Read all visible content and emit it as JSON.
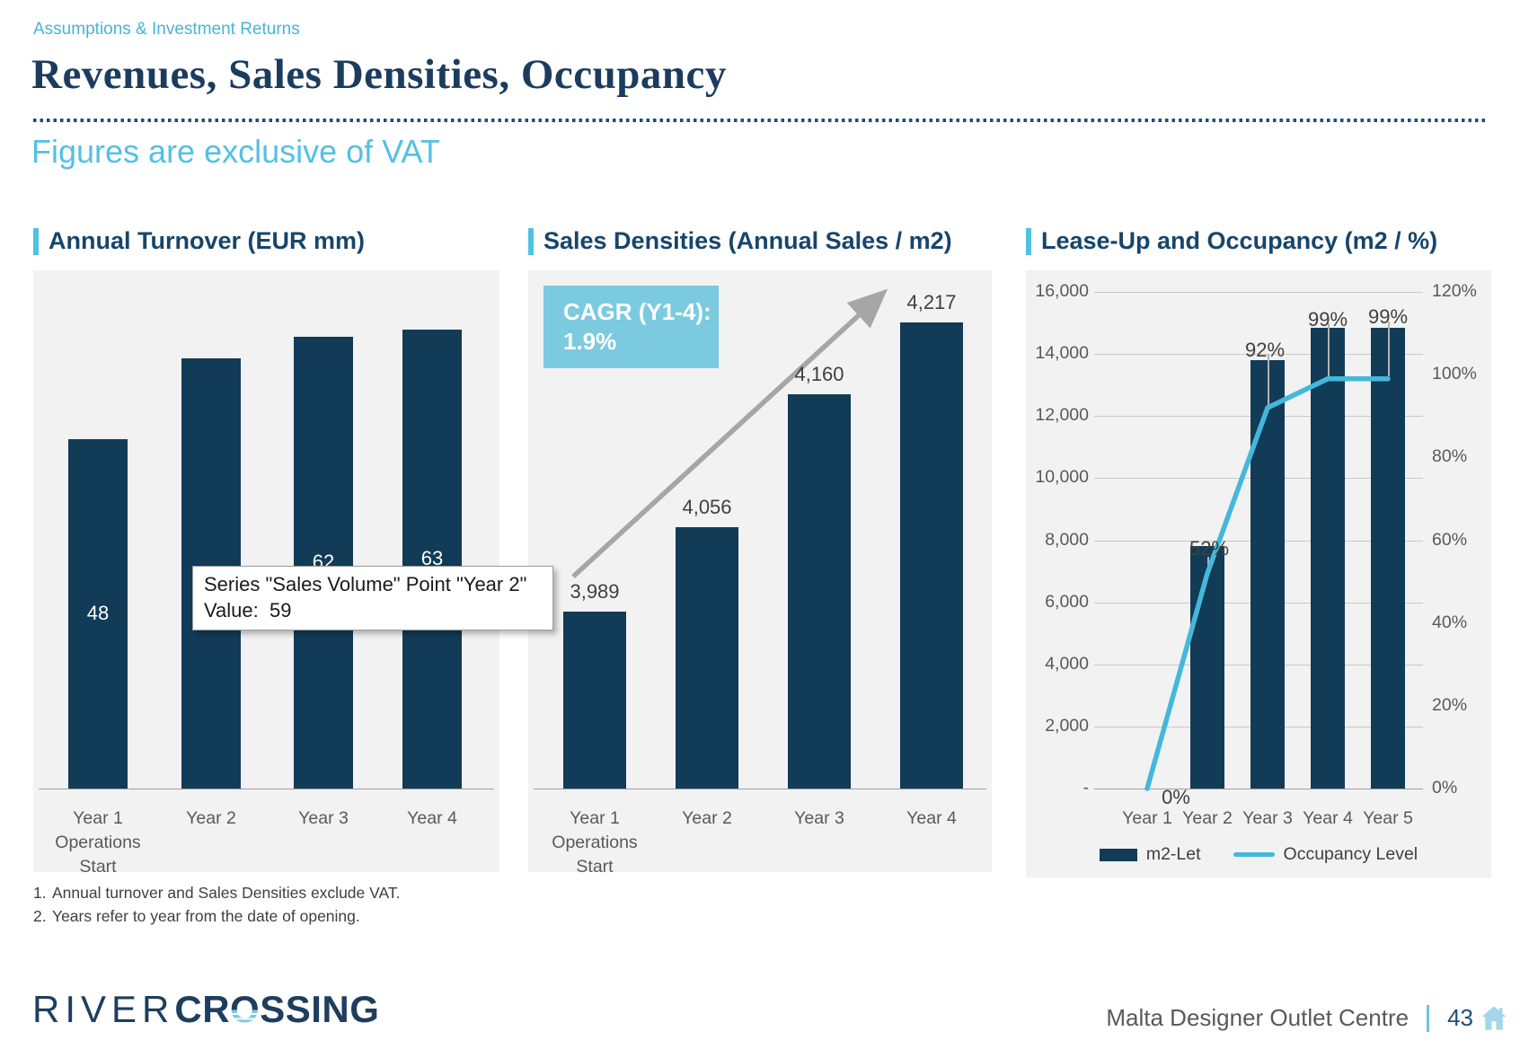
{
  "header": {
    "eyebrow": "Assumptions & Investment Returns",
    "title": "Revenues, Sales Densities, Occupancy",
    "subtitle": "Figures are exclusive of VAT"
  },
  "tooltip": {
    "line1": "Series \"Sales Volume\" Point \"Year 2\"",
    "line2": "Value:  59"
  },
  "footnotes": [
    {
      "num": "1.",
      "text": "Annual turnover and Sales Densities exclude VAT."
    },
    {
      "num": "2.",
      "text": "Years refer to year from the date of opening."
    }
  ],
  "footer": {
    "logo_part1": "RIVER",
    "logo_part2": "CR",
    "logo_part2_o": "O",
    "logo_part2_end": "SSING",
    "document_title": "Malta Designer Outlet Centre",
    "page_number": "43"
  },
  "colors": {
    "bar_navy": "#113B57",
    "accent_blue": "#4FC2E2",
    "line_blue": "#44B8DB",
    "cagr_box_blue": "#7BCAE0",
    "title_navy": "#17456B",
    "headline_navy": "#1B3C5E",
    "panel_bg": "#F2F2F2"
  },
  "chart_data": [
    {
      "type": "bar",
      "title": "Annual Turnover (EUR mm)",
      "series_name": "Sales Volume",
      "categories": [
        "Year 1\nOperations\nStart",
        "Year 2",
        "Year 3",
        "Year 4"
      ],
      "values": [
        48,
        59,
        62,
        63
      ],
      "data_labels": [
        "48",
        "59",
        "62",
        "63"
      ],
      "ylim": [
        0,
        70
      ],
      "label_position": "center",
      "grid": false
    },
    {
      "type": "bar",
      "title": "Sales Densities (Annual Sales / m2)",
      "categories": [
        "Year 1\nOperations\nStart",
        "Year 2",
        "Year 3",
        "Year 4"
      ],
      "values": [
        3989,
        4056,
        4160,
        4217
      ],
      "data_labels": [
        "3,989",
        "4,056",
        "4,160",
        "4,217"
      ],
      "ylim": [
        3850,
        4250
      ],
      "label_position": "above",
      "grid": false,
      "annotation": {
        "line1": "CAGR (Y1-4):",
        "line2": "1.9%"
      },
      "arrow": "diagonal-up-right"
    },
    {
      "type": "combo",
      "title": "Lease-Up and Occupancy (m2 / %)",
      "categories": [
        "Year 1",
        "Year 2",
        "Year 3",
        "Year 4",
        "Year 5"
      ],
      "series": [
        {
          "name": "m2-Let",
          "type": "bar",
          "axis": "left",
          "values": [
            0,
            7800,
            13800,
            14850,
            14850
          ]
        },
        {
          "name": "Occupancy Level",
          "type": "line",
          "axis": "right",
          "values": [
            0,
            52,
            92,
            99,
            99
          ],
          "point_labels": [
            "0%",
            "52%",
            "92%",
            "99%",
            "99%"
          ]
        }
      ],
      "left_axis": {
        "min": 0,
        "max": 16000,
        "tick_labels": [
          "16,000",
          "14,000",
          "12,000",
          "10,000",
          "8,000",
          "6,000",
          "4,000",
          "2,000",
          "-"
        ]
      },
      "right_axis": {
        "min": 0,
        "max": 120,
        "tick_labels": [
          "120%",
          "100%",
          "80%",
          "60%",
          "40%",
          "20%",
          "0%"
        ]
      },
      "grid": true,
      "legend_position": "bottom"
    }
  ]
}
